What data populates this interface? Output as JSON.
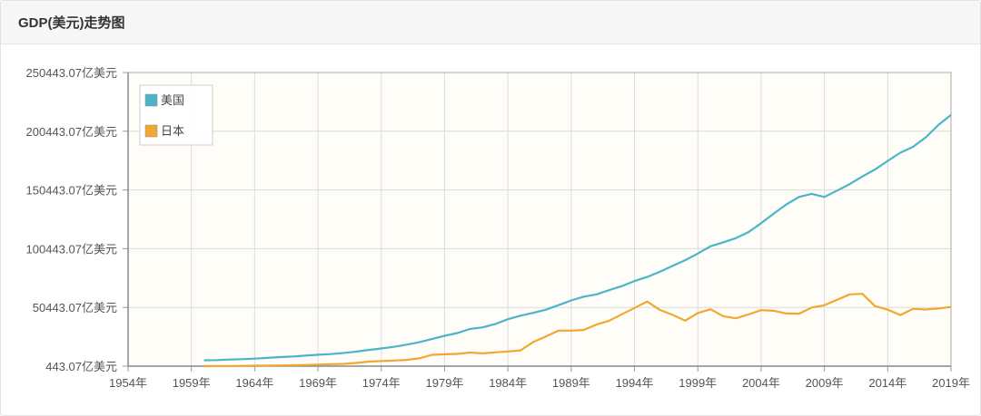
{
  "panel": {
    "title": "GDP(美元)走势图"
  },
  "chart_data": {
    "type": "line",
    "title": "GDP(美元)走势图",
    "xlabel": "",
    "ylabel": "",
    "x_range": [
      1954,
      2019
    ],
    "ylim": [
      443.07,
      250443.07
    ],
    "y_ticks": [
      443.07,
      50443.07,
      100443.07,
      150443.07,
      200443.07,
      250443.07
    ],
    "y_tick_labels": [
      "443.07亿美元",
      "50443.07亿美元",
      "100443.07亿美元",
      "150443.07亿美元",
      "200443.07亿美元",
      "250443.07亿美元"
    ],
    "x_ticks": [
      1954,
      1959,
      1964,
      1969,
      1974,
      1979,
      1984,
      1989,
      1994,
      1999,
      2004,
      2009,
      2014,
      2019
    ],
    "x_tick_labels": [
      "1954年",
      "1959年",
      "1964年",
      "1969年",
      "1974年",
      "1979年",
      "1984年",
      "1989年",
      "1994年",
      "1999年",
      "2004年",
      "2009年",
      "2014年",
      "2019年"
    ],
    "grid": true,
    "legend_position": "top-left",
    "series": [
      {
        "name": "美国",
        "color": "#4bb5c8",
        "x": [
          1960,
          1961,
          1962,
          1963,
          1964,
          1965,
          1966,
          1967,
          1968,
          1969,
          1970,
          1971,
          1972,
          1973,
          1974,
          1975,
          1976,
          1977,
          1978,
          1979,
          1980,
          1981,
          1982,
          1983,
          1984,
          1985,
          1986,
          1987,
          1988,
          1989,
          1990,
          1991,
          1992,
          1993,
          1994,
          1995,
          1996,
          1997,
          1998,
          1999,
          2000,
          2001,
          2002,
          2003,
          2004,
          2005,
          2006,
          2007,
          2008,
          2009,
          2010,
          2011,
          2012,
          2013,
          2014,
          2015,
          2016,
          2017,
          2018,
          2019
        ],
        "y": [
          5433,
          5633,
          6051,
          6386,
          6858,
          7437,
          8150,
          8617,
          9425,
          10199,
          10739,
          11630,
          12796,
          14251,
          15452,
          16849,
          18731,
          20813,
          23517,
          26274,
          28573,
          32076,
          33439,
          36343,
          40376,
          43389,
          45798,
          48550,
          52366,
          56411,
          59631,
          61587,
          65202,
          68586,
          72872,
          76397,
          80732,
          85774,
          90629,
          96305,
          102523,
          105818,
          109364,
          114580,
          122136,
          130369,
          138149,
          144517,
          147129,
          144487,
          149921,
          155426,
          161970,
          167848,
          175217,
          182192,
          187151,
          195194,
          205802,
          214332
        ]
      },
      {
        "name": "日本",
        "color": "#f0a830",
        "x": [
          1960,
          1961,
          1962,
          1963,
          1964,
          1965,
          1966,
          1967,
          1968,
          1969,
          1970,
          1971,
          1972,
          1973,
          1974,
          1975,
          1976,
          1977,
          1978,
          1979,
          1980,
          1981,
          1982,
          1983,
          1984,
          1985,
          1986,
          1987,
          1988,
          1989,
          1990,
          1991,
          1992,
          1993,
          1994,
          1995,
          1996,
          1997,
          1998,
          1999,
          2000,
          2001,
          2002,
          2003,
          2004,
          2005,
          2006,
          2007,
          2008,
          2009,
          2010,
          2011,
          2012,
          2013,
          2014,
          2015,
          2016,
          2017,
          2018,
          2019
        ],
        "y": [
          443,
          535,
          609,
          699,
          818,
          909,
          1056,
          1233,
          1467,
          1720,
          2126,
          2400,
          3181,
          4322,
          4798,
          5218,
          5765,
          7091,
          10119,
          10551,
          10873,
          12050,
          11340,
          12176,
          12944,
          13890,
          20961,
          25716,
          30737,
          30586,
          31328,
          35841,
          39090,
          44546,
          49986,
          55457,
          48336,
          44147,
          39143,
          45621,
          48875,
          43036,
          41152,
          44456,
          48151,
          47554,
          45304,
          45153,
          50379,
          52314,
          57001,
          61574,
          62032,
          51557,
          48504,
          43949,
          49227,
          48669,
          49548,
          50818
        ]
      }
    ]
  }
}
